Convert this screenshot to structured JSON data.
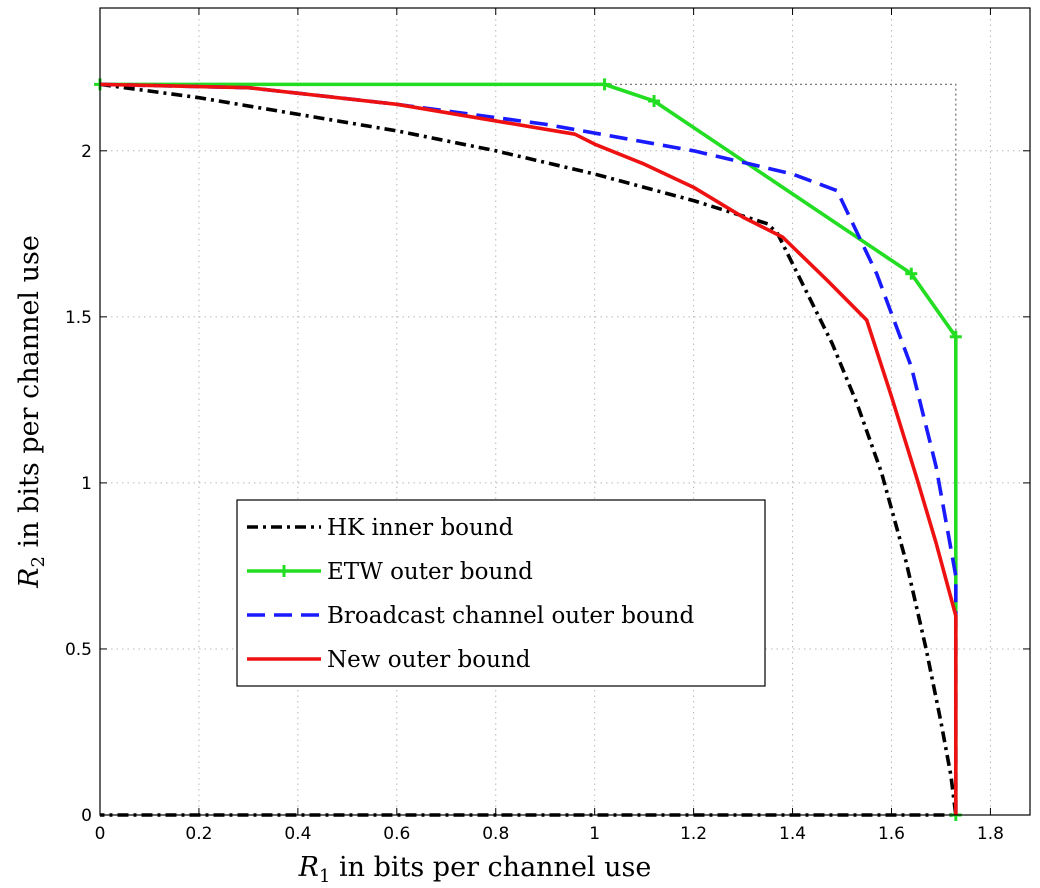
{
  "chart_data": {
    "type": "line",
    "title": "",
    "xlabel": {
      "var": "R",
      "sub": "1",
      "rest": " in bits per channel use"
    },
    "ylabel": {
      "var": "R",
      "sub": "2",
      "rest": " in bits per channel use"
    },
    "xlim": [
      0,
      1.88
    ],
    "ylim": [
      0,
      2.43
    ],
    "xticks": [
      0,
      0.2,
      0.4,
      0.6,
      0.8,
      1,
      1.2,
      1.4,
      1.6,
      1.8
    ],
    "xtick_labels": [
      "0",
      "0.2",
      "0.4",
      "0.6",
      "0.8",
      "1",
      "1.2",
      "1.4",
      "1.6",
      "1.8"
    ],
    "yticks": [
      0,
      0.5,
      1,
      1.5,
      2
    ],
    "ytick_labels": [
      "0",
      "0.5",
      "1",
      "1.5",
      "2"
    ],
    "grid": true,
    "legend_position": "lower-left",
    "series": [
      {
        "name": "HK inner bound",
        "color": "#000000",
        "dash": "dashdot",
        "marker": "none",
        "x": [
          0,
          0.2,
          0.4,
          0.6,
          0.8,
          1.0,
          1.2,
          1.35,
          1.37,
          1.42,
          1.48,
          1.53,
          1.58,
          1.63,
          1.67,
          1.7,
          1.72,
          1.73,
          1.73,
          0
        ],
        "y": [
          2.2,
          2.16,
          2.11,
          2.06,
          2.0,
          1.93,
          1.85,
          1.78,
          1.75,
          1.6,
          1.42,
          1.24,
          1.03,
          0.76,
          0.5,
          0.28,
          0.12,
          0,
          0,
          0
        ]
      },
      {
        "name": "ETW outer bound",
        "color": "#22dd22",
        "dash": "solid",
        "marker": "plus",
        "x": [
          0,
          1.02,
          1.12,
          1.64,
          1.73,
          1.73
        ],
        "y": [
          2.2,
          2.2,
          2.15,
          1.63,
          1.44,
          0
        ],
        "marker_indices": [
          0,
          1,
          2,
          3,
          4,
          5
        ]
      },
      {
        "name": "Broadcast channel outer bound",
        "color": "#1a1aff",
        "dash": "dashed",
        "marker": "none",
        "x": [
          0,
          0.3,
          0.6,
          0.9,
          1.2,
          1.4,
          1.49,
          1.57,
          1.64,
          1.69,
          1.73,
          1.73
        ],
        "y": [
          2.2,
          2.19,
          2.14,
          2.08,
          2.0,
          1.93,
          1.88,
          1.63,
          1.35,
          1.05,
          0.72,
          0
        ]
      },
      {
        "name": "New outer bound",
        "color": "#ee1111",
        "dash": "solid",
        "marker": "none",
        "x": [
          0,
          0.3,
          0.6,
          0.8,
          0.96,
          1.0,
          1.1,
          1.2,
          1.3,
          1.38,
          1.47,
          1.55,
          1.6,
          1.65,
          1.69,
          1.73,
          1.73
        ],
        "y": [
          2.2,
          2.19,
          2.14,
          2.09,
          2.05,
          2.02,
          1.96,
          1.89,
          1.8,
          1.74,
          1.61,
          1.49,
          1.26,
          1.02,
          0.82,
          0.6,
          0
        ]
      }
    ],
    "reference_box": {
      "x": [
        0,
        1.73,
        1.73
      ],
      "y": [
        2.2,
        2.2,
        0
      ],
      "color": "#777777",
      "dash": "dotted"
    }
  }
}
